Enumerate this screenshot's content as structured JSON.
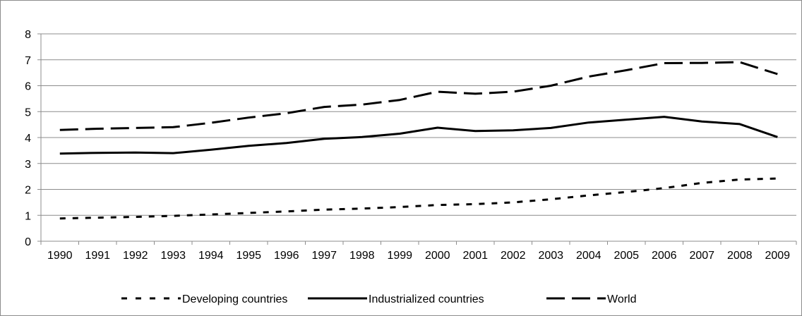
{
  "chart_data": {
    "type": "line",
    "categories": [
      "1990",
      "1991",
      "1992",
      "1993",
      "1994",
      "1995",
      "1996",
      "1997",
      "1998",
      "1999",
      "2000",
      "2001",
      "2002",
      "2003",
      "2004",
      "2005",
      "2006",
      "2007",
      "2008",
      "2009"
    ],
    "ylim": [
      0,
      8
    ],
    "yticks": [
      0,
      1,
      2,
      3,
      4,
      5,
      6,
      7,
      8
    ],
    "grid": true,
    "legend_position": "bottom",
    "series": [
      {
        "name": "Developing countries",
        "style": "dotted",
        "color": "#000000",
        "values": [
          0.88,
          0.91,
          0.94,
          0.98,
          1.03,
          1.09,
          1.15,
          1.22,
          1.26,
          1.32,
          1.4,
          1.43,
          1.5,
          1.62,
          1.77,
          1.9,
          2.05,
          2.25,
          2.38,
          2.42
        ]
      },
      {
        "name": "Industrialized countries",
        "style": "solid",
        "color": "#000000",
        "values": [
          3.38,
          3.41,
          3.42,
          3.4,
          3.53,
          3.68,
          3.79,
          3.95,
          4.02,
          4.15,
          4.38,
          4.25,
          4.28,
          4.37,
          4.58,
          4.69,
          4.8,
          4.62,
          4.52,
          4.02
        ]
      },
      {
        "name": "World",
        "style": "dashed",
        "color": "#000000",
        "values": [
          4.29,
          4.34,
          4.37,
          4.4,
          4.57,
          4.77,
          4.94,
          5.18,
          5.27,
          5.45,
          5.77,
          5.69,
          5.77,
          6.0,
          6.35,
          6.6,
          6.87,
          6.88,
          6.91,
          6.45
        ]
      }
    ]
  }
}
